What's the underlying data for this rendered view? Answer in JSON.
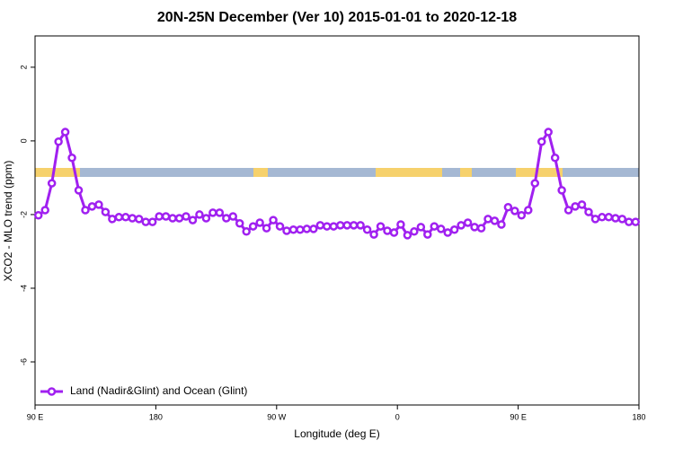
{
  "chart_data": {
    "type": "line",
    "title": "20N-25N December (Ver 10)   2015-01-01 to 2020-12-18",
    "xlabel": "Longitude (deg E)",
    "ylabel": "XCO2 - MLO trend (ppm)",
    "xlim": [
      90,
      540
    ],
    "ylim": [
      -7.17,
      2.85
    ],
    "xticks": [
      {
        "value": 90,
        "label": "90 E"
      },
      180,
      {
        "value": 270,
        "label": "90 W"
      },
      {
        "value": 360,
        "label": "0"
      },
      {
        "value": 450,
        "label": "90 E"
      },
      {
        "value": 540,
        "label": "180"
      }
    ],
    "yticks": [
      2,
      0,
      -2,
      -4,
      -6
    ],
    "legend": "bottom-left",
    "x": [
      92.5,
      97.5,
      102.5,
      107.5,
      112.5,
      117.5,
      122.5,
      127.5,
      132.5,
      137.5,
      142.5,
      147.5,
      152.5,
      157.5,
      162.5,
      167.5,
      172.5,
      177.5,
      182.5,
      187.5,
      192.5,
      197.5,
      202.5,
      207.5,
      212.5,
      217.5,
      222.5,
      227.5,
      232.5,
      237.5,
      242.5,
      247.5,
      252.5,
      257.5,
      262.5,
      267.5,
      272.5,
      277.5,
      282.5,
      287.5,
      292.5,
      297.5,
      302.5,
      307.5,
      312.5,
      317.5,
      322.5,
      327.5,
      332.5,
      337.5,
      342.5,
      347.5,
      352.5,
      357.5,
      362.5,
      367.5,
      372.5,
      377.5,
      382.5,
      387.5,
      392.5,
      397.5,
      402.5,
      407.5,
      412.5,
      417.5,
      422.5,
      427.5,
      432.5,
      437.5,
      442.5,
      447.5,
      452.5,
      457.5,
      462.5,
      467.5,
      472.5,
      477.5,
      482.5,
      487.5,
      492.5,
      497.5,
      502.5,
      507.5,
      512.5,
      517.5,
      522.5,
      527.5,
      532.5,
      537.5
    ],
    "series": [
      {
        "name": "Land (Nadir&Glint) and Ocean (Glint)",
        "color": "#a020f0",
        "values": [
          -2.02,
          -1.88,
          -1.15,
          -0.02,
          0.24,
          -0.46,
          -1.34,
          -1.88,
          -1.78,
          -1.73,
          -1.93,
          -2.12,
          -2.07,
          -2.07,
          -2.1,
          -2.12,
          -2.2,
          -2.2,
          -2.05,
          -2.05,
          -2.1,
          -2.1,
          -2.05,
          -2.15,
          -2.0,
          -2.1,
          -1.95,
          -1.95,
          -2.1,
          -2.05,
          -2.24,
          -2.46,
          -2.32,
          -2.22,
          -2.37,
          -2.15,
          -2.32,
          -2.44,
          -2.41,
          -2.41,
          -2.39,
          -2.39,
          -2.29,
          -2.32,
          -2.32,
          -2.29,
          -2.29,
          -2.29,
          -2.29,
          -2.41,
          -2.54,
          -2.32,
          -2.44,
          -2.49,
          -2.27,
          -2.56,
          -2.46,
          -2.34,
          -2.54,
          -2.32,
          -2.39,
          -2.49,
          -2.41,
          -2.29,
          -2.22,
          -2.34,
          -2.37,
          -2.12,
          -2.17,
          -2.27,
          -1.8,
          -1.9,
          -2.02,
          -1.88,
          -1.15,
          -0.02,
          0.24,
          -0.46,
          -1.34,
          -1.88,
          -1.78,
          -1.73,
          -1.93,
          -2.12,
          -2.07,
          -2.07,
          -2.1,
          -2.12,
          -2.2,
          -2.2
        ]
      }
    ]
  }
}
